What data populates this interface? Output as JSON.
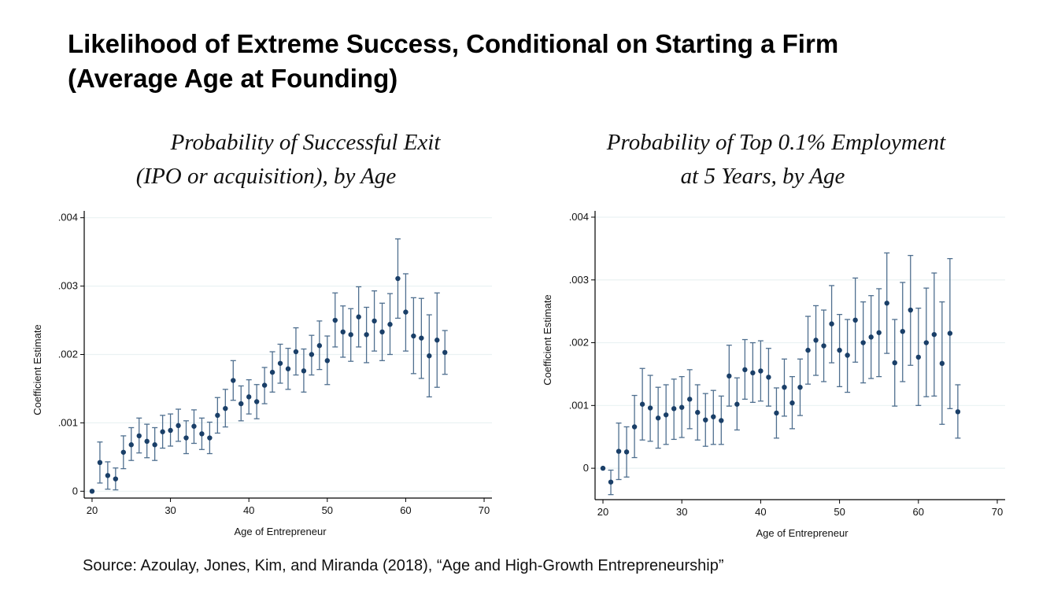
{
  "title": {
    "line1": "Likelihood of Extreme Success, Conditional on Starting a Firm",
    "line2": "(Average Age at Founding)"
  },
  "source": "Source: Azoulay, Jones, Kim, and Miranda (2018), “Age and High-Growth Entrepreneurship”",
  "colors": {
    "marker": "#1a3f68",
    "errorbar": "#4f6f8f",
    "grid": "#eaf2f3",
    "axis": "#000000"
  },
  "chart_data": [
    {
      "type": "scatter",
      "subtitle_lines": [
        "Probability of Successful Exit",
        "(IPO or acquisition), by Age"
      ],
      "xlabel": "Age of Entrepreneur",
      "ylabel": "Coefficient Estimate",
      "xlim": [
        19,
        71
      ],
      "ylim": [
        -0.0001,
        0.0041
      ],
      "xticks": [
        20,
        30,
        40,
        50,
        60,
        70
      ],
      "xtick_labels": [
        "20",
        "30",
        "40",
        "50",
        "60",
        "70"
      ],
      "yticks": [
        0,
        0.001,
        0.002,
        0.003,
        0.004
      ],
      "ytick_labels": [
        "0",
        ".001",
        ".002",
        ".003",
        ".004"
      ],
      "grid": true,
      "series": [
        {
          "x": [
            20,
            21,
            22,
            23,
            24,
            25,
            26,
            27,
            28,
            29,
            30,
            31,
            32,
            33,
            34,
            35,
            36,
            37,
            38,
            39,
            40,
            41,
            42,
            43,
            44,
            45,
            46,
            47,
            48,
            49,
            50,
            51,
            52,
            53,
            54,
            55,
            56,
            57,
            58,
            59,
            60,
            61,
            62,
            63,
            64,
            65
          ],
          "y": [
            0,
            0.00042,
            0.00023,
            0.00018,
            0.00057,
            0.00068,
            0.00081,
            0.00073,
            0.00068,
            0.00087,
            0.00089,
            0.00096,
            0.00078,
            0.00095,
            0.00084,
            0.00078,
            0.00111,
            0.00121,
            0.00162,
            0.00128,
            0.00138,
            0.00131,
            0.00155,
            0.00174,
            0.00187,
            0.00179,
            0.00204,
            0.00176,
            0.002,
            0.00213,
            0.00191,
            0.0025,
            0.00233,
            0.00229,
            0.00255,
            0.00229,
            0.00249,
            0.00233,
            0.00244,
            0.00311,
            0.00262,
            0.00227,
            0.00224,
            0.00198,
            0.00221,
            0.00203
          ],
          "lower": [
            0,
            0.00012,
            3e-05,
            2e-05,
            0.00033,
            0.00045,
            0.00056,
            0.00049,
            0.00045,
            0.00063,
            0.00066,
            0.00073,
            0.00055,
            0.0007,
            0.00061,
            0.00055,
            0.00085,
            0.00094,
            0.00133,
            0.00103,
            0.00113,
            0.00106,
            0.00128,
            0.00145,
            0.00158,
            0.00149,
            0.0017,
            0.00145,
            0.0017,
            0.00178,
            0.00156,
            0.00211,
            0.00196,
            0.0019,
            0.00211,
            0.00188,
            0.00205,
            0.00191,
            0.002,
            0.00253,
            0.00205,
            0.00172,
            0.00165,
            0.00138,
            0.00152,
            0.00171
          ],
          "upper": [
            0,
            0.00072,
            0.00043,
            0.00034,
            0.00081,
            0.00093,
            0.00107,
            0.00098,
            0.00093,
            0.00111,
            0.00113,
            0.0012,
            0.00103,
            0.00119,
            0.00107,
            0.00101,
            0.00137,
            0.00149,
            0.00191,
            0.00154,
            0.00163,
            0.00156,
            0.00181,
            0.00204,
            0.00215,
            0.00209,
            0.00239,
            0.00208,
            0.00228,
            0.00249,
            0.00227,
            0.0029,
            0.00271,
            0.00267,
            0.00299,
            0.00269,
            0.00293,
            0.00275,
            0.00289,
            0.00369,
            0.00318,
            0.00283,
            0.00282,
            0.00258,
            0.0029,
            0.00235
          ]
        }
      ]
    },
    {
      "type": "scatter",
      "subtitle_lines": [
        "Probability of Top 0.1% Employment",
        "at 5 Years, by Age"
      ],
      "xlabel": "Age of Entrepreneur",
      "ylabel": "Coefficient Estimate",
      "xlim": [
        19,
        71
      ],
      "ylim": [
        -0.0005,
        0.0041
      ],
      "xticks": [
        20,
        30,
        40,
        50,
        60,
        70
      ],
      "xtick_labels": [
        "20",
        "30",
        "40",
        "50",
        "60",
        "70"
      ],
      "yticks": [
        0,
        0.001,
        0.002,
        0.003,
        0.004
      ],
      "ytick_labels": [
        "0",
        ".001",
        ".002",
        ".003",
        ".004"
      ],
      "grid": true,
      "series": [
        {
          "x": [
            20,
            21,
            22,
            23,
            24,
            25,
            26,
            27,
            28,
            29,
            30,
            31,
            32,
            33,
            34,
            35,
            36,
            37,
            38,
            39,
            40,
            41,
            42,
            43,
            44,
            45,
            46,
            47,
            48,
            49,
            50,
            51,
            52,
            53,
            54,
            55,
            56,
            57,
            58,
            59,
            60,
            61,
            62,
            63,
            64,
            65
          ],
          "y": [
            0,
            -0.00022,
            0.00027,
            0.00026,
            0.00066,
            0.00102,
            0.00096,
            0.0008,
            0.00085,
            0.00095,
            0.00097,
            0.0011,
            0.00089,
            0.00077,
            0.00082,
            0.00076,
            0.00147,
            0.00102,
            0.00157,
            0.00152,
            0.00155,
            0.00145,
            0.00088,
            0.00129,
            0.00104,
            0.00129,
            0.00188,
            0.00204,
            0.00195,
            0.0023,
            0.00188,
            0.0018,
            0.00236,
            0.002,
            0.00209,
            0.00216,
            0.00263,
            0.00168,
            0.00218,
            0.00252,
            0.00177,
            0.002,
            0.00213,
            0.00167,
            0.00215,
            0.0009
          ],
          "lower": [
            0,
            -0.00042,
            -0.00018,
            -0.00014,
            0.00017,
            0.00045,
            0.00043,
            0.00032,
            0.00038,
            0.00046,
            0.00049,
            0.00063,
            0.00045,
            0.00035,
            0.00038,
            0.00038,
            0.00099,
            0.00061,
            0.0011,
            0.00105,
            0.00107,
            0.00099,
            0.00048,
            0.00083,
            0.00063,
            0.00084,
            0.00134,
            0.00148,
            0.00138,
            0.00168,
            0.0013,
            0.00121,
            0.00169,
            0.00136,
            0.00143,
            0.00146,
            0.00183,
            0.00099,
            0.00138,
            0.00164,
            0.001,
            0.00114,
            0.00115,
            0.0007,
            0.00095,
            0.00048
          ],
          "upper": [
            0,
            -3e-05,
            0.00072,
            0.00066,
            0.00116,
            0.00159,
            0.00148,
            0.00129,
            0.00133,
            0.00142,
            0.00146,
            0.00157,
            0.00133,
            0.00119,
            0.00124,
            0.00115,
            0.00196,
            0.00144,
            0.00205,
            0.002,
            0.00203,
            0.00191,
            0.00128,
            0.00174,
            0.00146,
            0.00174,
            0.00242,
            0.00259,
            0.00252,
            0.00291,
            0.00245,
            0.00237,
            0.00303,
            0.00265,
            0.00275,
            0.00286,
            0.00343,
            0.00237,
            0.00296,
            0.00339,
            0.00255,
            0.00287,
            0.00311,
            0.00265,
            0.00334,
            0.00133
          ]
        }
      ]
    }
  ]
}
